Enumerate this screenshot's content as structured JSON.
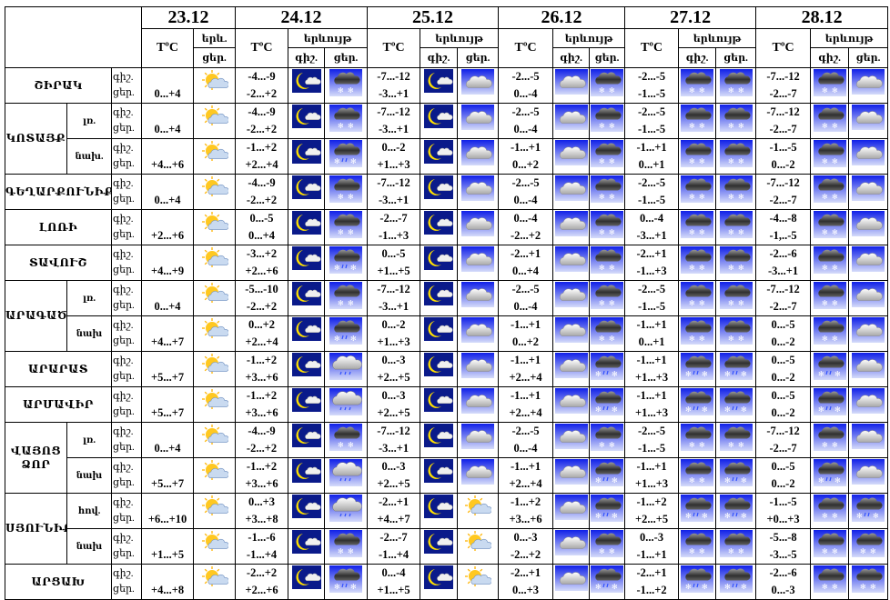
{
  "header": {
    "dates": [
      "23.12",
      "24.12",
      "25.12",
      "26.12",
      "27.12",
      "28.12"
    ],
    "temp": "TºC",
    "phenomenon": "երևույթ",
    "phenomenon_short": "երև.",
    "night": "գիշ.",
    "day": "ցեր."
  },
  "row_labels": {
    "night": "գիշ.",
    "day": "ցեր."
  },
  "icon_legend": {
    "ps": "partly-sunny",
    "moon": "night-partly-cloudy",
    "cloud": "cloudy",
    "snow": "snow",
    "sleet": "sleet",
    "rain": "rain"
  },
  "regions": [
    {
      "name": "ՇԻՐԱԿ",
      "subs": [
        {
          "label": "",
          "t23": "0...+4",
          "i23": "ps",
          "days": [
            [
              "-4...-9",
              "-2...+2",
              "moon",
              "snow"
            ],
            [
              "-7...-12",
              "-3...+1",
              "moon",
              "cloud"
            ],
            [
              "-2...-5",
              "0...-4",
              "cloud",
              "snow"
            ],
            [
              "-2...-5",
              "-1...-5",
              "snow",
              "snow"
            ],
            [
              "-7...-12",
              "-2...-7",
              "snow",
              "cloud"
            ]
          ]
        }
      ]
    },
    {
      "name": "ԿՈՏԱՅՔ",
      "subs": [
        {
          "label": "լռ.",
          "t23": "0...+4",
          "i23": "ps",
          "days": [
            [
              "-4...-9",
              "-2...+2",
              "moon",
              "snow"
            ],
            [
              "-7...-12",
              "-3...+1",
              "moon",
              "cloud"
            ],
            [
              "-2...-5",
              "0...-4",
              "cloud",
              "snow"
            ],
            [
              "-2...-5",
              "-1...-5",
              "snow",
              "snow"
            ],
            [
              "-7...-12",
              "-2...-7",
              "snow",
              "cloud"
            ]
          ]
        },
        {
          "label": "նախ.",
          "t23": "+4...+6",
          "i23": "ps",
          "days": [
            [
              "-1...+2",
              "+2...+4",
              "moon",
              "sleet"
            ],
            [
              "0...-2",
              "+1...+3",
              "moon",
              "cloud"
            ],
            [
              "-1...+1",
              "0...+2",
              "cloud",
              "snow"
            ],
            [
              "-1...+1",
              "0...+1",
              "snow",
              "snow"
            ],
            [
              "-1...-5",
              "0...-2",
              "snow",
              "cloud"
            ]
          ]
        }
      ]
    },
    {
      "name": "ԳԵՂԱՐՔՈՒՆԻՔ",
      "subs": [
        {
          "label": "",
          "t23": "0...+4",
          "i23": "ps",
          "days": [
            [
              "-4...-9",
              "-2...+2",
              "moon",
              "snow"
            ],
            [
              "-7...-12",
              "-3...+1",
              "moon",
              "cloud"
            ],
            [
              "-2...-5",
              "0...-4",
              "cloud",
              "snow"
            ],
            [
              "-2...-5",
              "-1...-5",
              "snow",
              "snow"
            ],
            [
              "-7...-12",
              "-2...-7",
              "snow",
              "cloud"
            ]
          ]
        }
      ]
    },
    {
      "name": "ԼՈՌԻ",
      "subs": [
        {
          "label": "",
          "t23": "+2...+6",
          "i23": "ps",
          "days": [
            [
              "0...-5",
              "0...+4",
              "moon",
              "snow"
            ],
            [
              "-2...-7",
              "-1...+3",
              "moon",
              "cloud"
            ],
            [
              "0...-4",
              "-2...+2",
              "cloud",
              "snow"
            ],
            [
              "0...-4",
              "-3...+1",
              "snow",
              "snow"
            ],
            [
              "-4...-8",
              "-1,..-5",
              "snow",
              "cloud"
            ]
          ]
        }
      ]
    },
    {
      "name": "ՏԱՎՈՒՇ",
      "subs": [
        {
          "label": "",
          "t23": "+4...+9",
          "i23": "ps",
          "days": [
            [
              "-3...+2",
              "+2...+6",
              "moon",
              "sleet"
            ],
            [
              "0...-5",
              "+1...+5",
              "moon",
              "cloud"
            ],
            [
              "-2...+1",
              "0...+4",
              "cloud",
              "snow"
            ],
            [
              "-2...+1",
              "-1...+3",
              "snow",
              "snow"
            ],
            [
              "-2...-6",
              "-3...+1",
              "snow",
              "cloud"
            ]
          ]
        }
      ]
    },
    {
      "name": "ԱՐԱԳԱԾՈՏՆ",
      "subs": [
        {
          "label": "լռ.",
          "t23": "0...+4",
          "i23": "ps",
          "days": [
            [
              "-5...-10",
              "-2...+2",
              "moon",
              "snow"
            ],
            [
              "-7...-12",
              "-3...+1",
              "moon",
              "cloud"
            ],
            [
              "-2...-5",
              "0...-4",
              "cloud",
              "snow"
            ],
            [
              "-2...-5",
              "-1...-5",
              "snow",
              "snow"
            ],
            [
              "-7...-12",
              "-2...-7",
              "snow",
              "cloud"
            ]
          ]
        },
        {
          "label": "նախ",
          "t23": "+4...+7",
          "i23": "ps",
          "days": [
            [
              "0...+2",
              "+2...+4",
              "moon",
              "sleet"
            ],
            [
              "0...-2",
              "+1...+3",
              "moon",
              "cloud"
            ],
            [
              "-1...+1",
              "0...+2",
              "cloud",
              "snow"
            ],
            [
              "-1...+1",
              "0...+1",
              "snow",
              "snow"
            ],
            [
              "0...-5",
              "0...-2",
              "snow",
              "cloud"
            ]
          ]
        }
      ]
    },
    {
      "name": "ԱՐԱՐԱՏ",
      "subs": [
        {
          "label": "",
          "t23": "+5...+7",
          "i23": "ps",
          "days": [
            [
              "-1...+2",
              "+3...+6",
              "moon",
              "rain"
            ],
            [
              "0...-3",
              "+2...+5",
              "moon",
              "cloud"
            ],
            [
              "-1...+1",
              "+2...+4",
              "cloud",
              "sleet"
            ],
            [
              "-1...+1",
              "+1...+3",
              "sleet",
              "sleet"
            ],
            [
              "0...-5",
              "0...-2",
              "sleet",
              "cloud"
            ]
          ]
        }
      ]
    },
    {
      "name": "ԱՐՄԱՎԻՐ",
      "subs": [
        {
          "label": "",
          "t23": "+5...+7",
          "i23": "ps",
          "days": [
            [
              "-1...+2",
              "+3...+6",
              "moon",
              "rain"
            ],
            [
              "0...-3",
              "+2...+5",
              "moon",
              "cloud"
            ],
            [
              "-1...+1",
              "+2...+4",
              "cloud",
              "sleet"
            ],
            [
              "-1...+1",
              "+1...+3",
              "sleet",
              "sleet"
            ],
            [
              "0...-5",
              "0...-2",
              "sleet",
              "cloud"
            ]
          ]
        }
      ]
    },
    {
      "name": "ՎԱՅՈՑ ՁՈՐ",
      "subs": [
        {
          "label": "լռ.",
          "t23": "0...+4",
          "i23": "ps",
          "days": [
            [
              "-4...-9",
              "-2...+2",
              "moon",
              "snow"
            ],
            [
              "-7...-12",
              "-3...+1",
              "moon",
              "cloud"
            ],
            [
              "-2...-5",
              "0...-4",
              "cloud",
              "snow"
            ],
            [
              "-2...-5",
              "-1...-5",
              "snow",
              "snow"
            ],
            [
              "-7...-12",
              "-2...-7",
              "snow",
              "cloud"
            ]
          ]
        },
        {
          "label": "նախ",
          "t23": "+5...+7",
          "i23": "ps",
          "days": [
            [
              "-1...+2",
              "+3...+6",
              "moon",
              "rain"
            ],
            [
              "0...-3",
              "+2...+5",
              "moon",
              "cloud"
            ],
            [
              "-1...+1",
              "+2...+4",
              "cloud",
              "sleet"
            ],
            [
              "-1...+1",
              "+1...+3",
              "snow",
              "sleet"
            ],
            [
              "0...-5",
              "0...-2",
              "sleet",
              "cloud"
            ]
          ]
        }
      ]
    },
    {
      "name": "ՍՅՈՒՆԻՔ",
      "subs": [
        {
          "label": "հով.",
          "t23": "+6...+10",
          "i23": "ps",
          "days": [
            [
              "0...+3",
              "+3...+8",
              "moon",
              "rain"
            ],
            [
              "-2...+1",
              "+4...+7",
              "moon",
              "ps"
            ],
            [
              "-1...+2",
              "+3...+6",
              "cloud",
              "sleet"
            ],
            [
              "-1...+2",
              "+2...+5",
              "sleet",
              "sleet"
            ],
            [
              "-1...-5",
              "+0...+3",
              "snow",
              "sleet"
            ]
          ]
        },
        {
          "label": "նախ",
          "t23": "+1...+5",
          "i23": "ps",
          "days": [
            [
              "-1...-6",
              "-1...+4",
              "moon",
              "snow"
            ],
            [
              "-2...-7",
              "-1...+4",
              "moon",
              "ps"
            ],
            [
              "0...-3",
              "-2...+2",
              "cloud",
              "snow"
            ],
            [
              "0...-3",
              "-1...+1",
              "snow",
              "snow"
            ],
            [
              "-5...-8",
              "-3...-5",
              "snow",
              "snow"
            ]
          ]
        }
      ]
    },
    {
      "name": "ԱՐՑԱԽ",
      "subs": [
        {
          "label": "",
          "t23": "+4...+8",
          "i23": "ps",
          "days": [
            [
              "-2...+2",
              "+2...+6",
              "moon",
              "sleet"
            ],
            [
              "0...-4",
              "+1...+5",
              "moon",
              "ps"
            ],
            [
              "-2...+1",
              "0...+3",
              "cloud",
              "sleet"
            ],
            [
              "-2...+1",
              "-1...+2",
              "sleet",
              "sleet"
            ],
            [
              "-2...-6",
              "0...-3",
              "snow",
              "snow"
            ]
          ]
        }
      ]
    }
  ]
}
